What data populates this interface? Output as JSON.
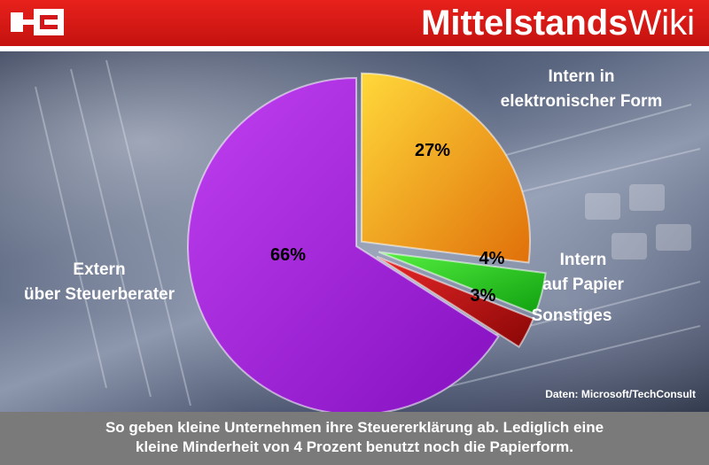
{
  "brand": {
    "part1": "Mittelstands",
    "part2": "Wiki"
  },
  "colors": {
    "header": "#d4161b",
    "extern": "#a020d8",
    "intern_elektronisch": "#f4a21c",
    "intern_papier": "#2bd41c",
    "sonstiges": "#c01010",
    "caption_bg": "#7a7a7a"
  },
  "chart_data": {
    "type": "pie",
    "slices": [
      {
        "key": "intern_elektronisch",
        "label_lines": [
          "Intern in",
          "elektronischer Form"
        ],
        "value": 27,
        "value_label": "27%"
      },
      {
        "key": "intern_papier",
        "label_lines": [
          "Intern",
          "auf Papier"
        ],
        "value": 4,
        "value_label": "4%"
      },
      {
        "key": "sonstiges",
        "label_lines": [
          "Sonstiges"
        ],
        "value": 3,
        "value_label": "3%"
      },
      {
        "key": "extern",
        "label_lines": [
          "Extern",
          "über Steuerberater"
        ],
        "value": 66,
        "value_label": "66%"
      }
    ],
    "source": "Daten: Microsoft/TechConsult",
    "legend": "none"
  },
  "caption": {
    "line1": "So geben kleine Unternehmen ihre Steuererklärung ab. Lediglich eine",
    "line2": "kleine Minderheit von 4 Prozent benutzt noch die Papierform."
  }
}
